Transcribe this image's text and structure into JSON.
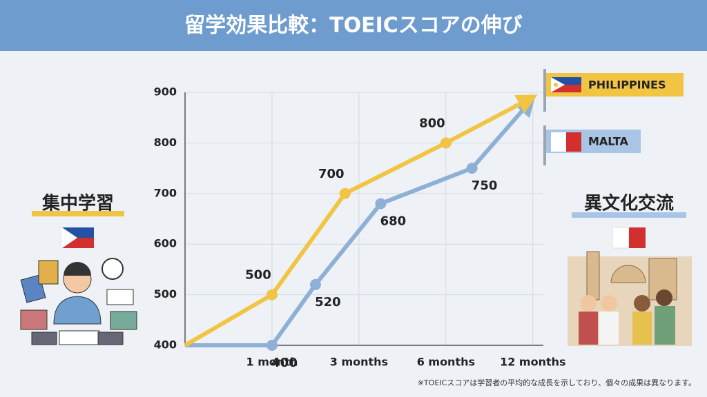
{
  "header": {
    "title": "留学効果比較：TOEICスコアの伸び"
  },
  "chart_data": {
    "type": "line",
    "xlim": [
      0,
      4.2
    ],
    "ylim": [
      400,
      900
    ],
    "xticks": [
      {
        "value": 1,
        "label": "1 month"
      },
      {
        "value": 2,
        "label": "3 months"
      },
      {
        "value": 3,
        "label": "6 months"
      },
      {
        "value": 4,
        "label": "12 months"
      }
    ],
    "yticks": [
      400,
      500,
      600,
      700,
      800,
      900
    ],
    "grid": true,
    "series": [
      {
        "name": "PHILIPPINES",
        "color": "#f2c443",
        "x": [
          0,
          1,
          1.84,
          3,
          3.95
        ],
        "values": [
          400,
          500,
          700,
          800,
          886
        ]
      },
      {
        "name": "MALTA",
        "color": "#8fb0d6",
        "x": [
          0,
          1,
          1.5,
          2.25,
          3.3,
          3.95
        ],
        "values": [
          400,
          400,
          520,
          680,
          750,
          878
        ]
      }
    ]
  },
  "left_panel": {
    "label": "集中学習"
  },
  "right_panel": {
    "label": "異文化交流"
  },
  "footnote": "※TOEICスコアは学習者の平均的な成長を示しており、個々の成果は異なります。"
}
